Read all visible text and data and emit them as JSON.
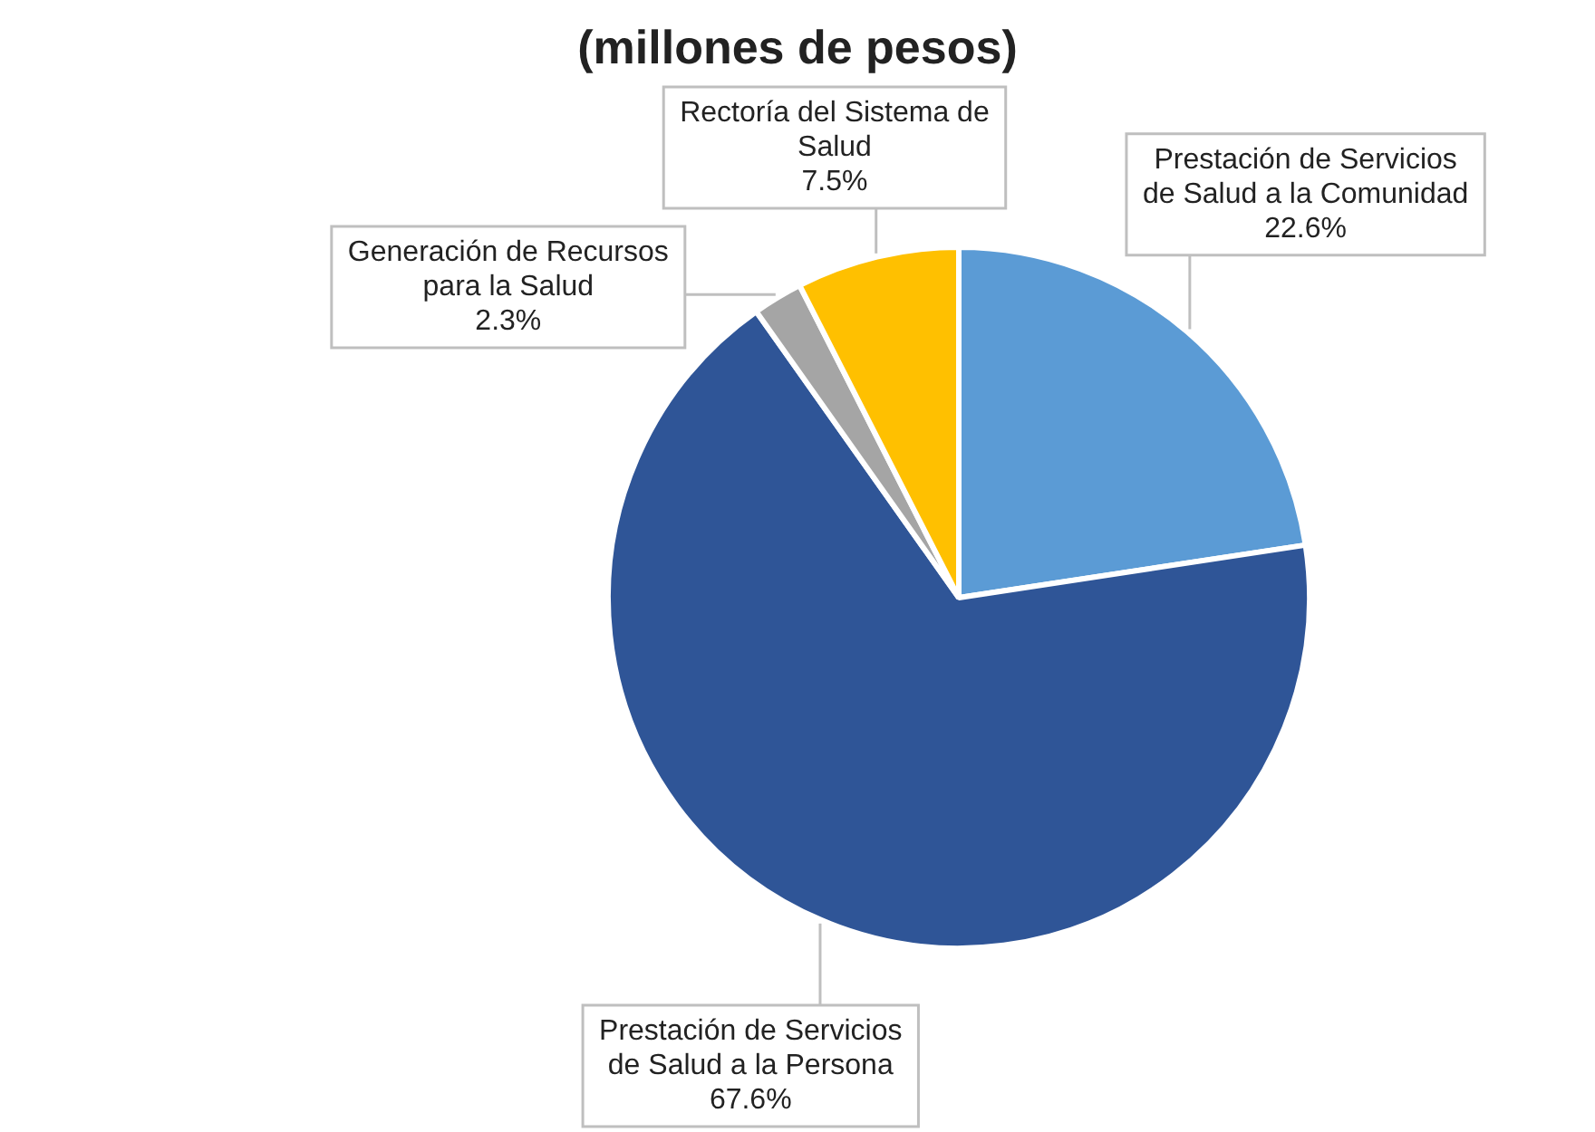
{
  "chart_data": {
    "type": "pie",
    "title": "(millones de pesos)",
    "categories": [
      "Prestación de Servicios de Salud a la Comunidad",
      "Prestación de Servicios de Salud a la Persona",
      "Generación de Recursos para la Salud",
      "Rectoría del Sistema de Salud"
    ],
    "values": [
      22.6,
      67.6,
      2.3,
      7.5
    ],
    "value_labels": [
      "22.6%",
      "67.6%",
      "2.3%",
      "7.5%"
    ],
    "colors": [
      "#5b9bd5",
      "#2f5597",
      "#a5a5a5",
      "#ffc000"
    ],
    "legend": false
  }
}
